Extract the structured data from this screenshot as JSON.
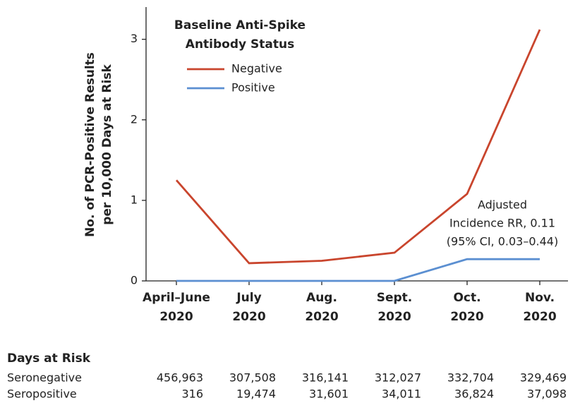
{
  "chart_data": {
    "type": "line",
    "ylabel": [
      "No. of PCR-Positive Results",
      "per 10,000 Days at Risk"
    ],
    "legend_title": [
      "Baseline Anti-Spike",
      "Antibody Status"
    ],
    "categories": [
      [
        "April–June",
        "2020"
      ],
      [
        "July",
        "2020"
      ],
      [
        "Aug.",
        "2020"
      ],
      [
        "Sept.",
        "2020"
      ],
      [
        "Oct.",
        "2020"
      ],
      [
        "Nov.",
        "2020"
      ]
    ],
    "series": [
      {
        "name": "Negative",
        "color": "#c9452d",
        "values": [
          1.25,
          0.22,
          0.25,
          0.35,
          1.08,
          3.12
        ]
      },
      {
        "name": "Positive",
        "color": "#5b8fd1",
        "values": [
          0,
          0,
          0,
          0,
          0.27,
          0.27
        ]
      }
    ],
    "ylim": [
      0,
      3.4
    ],
    "yticks": [
      0,
      1,
      2,
      3
    ],
    "annotation": [
      "Adjusted",
      "Incidence RR, 0.11",
      "(95% CI, 0.03–0.44)"
    ]
  },
  "risk_table": {
    "title": "Days at Risk",
    "rows": [
      {
        "label": "Seronegative",
        "values": [
          "456,963",
          "307,508",
          "316,141",
          "312,027",
          "332,704",
          "329,469"
        ]
      },
      {
        "label": "Seropositive",
        "values": [
          "316",
          "19,474",
          "31,601",
          "34,011",
          "36,824",
          "37,098"
        ]
      }
    ]
  }
}
